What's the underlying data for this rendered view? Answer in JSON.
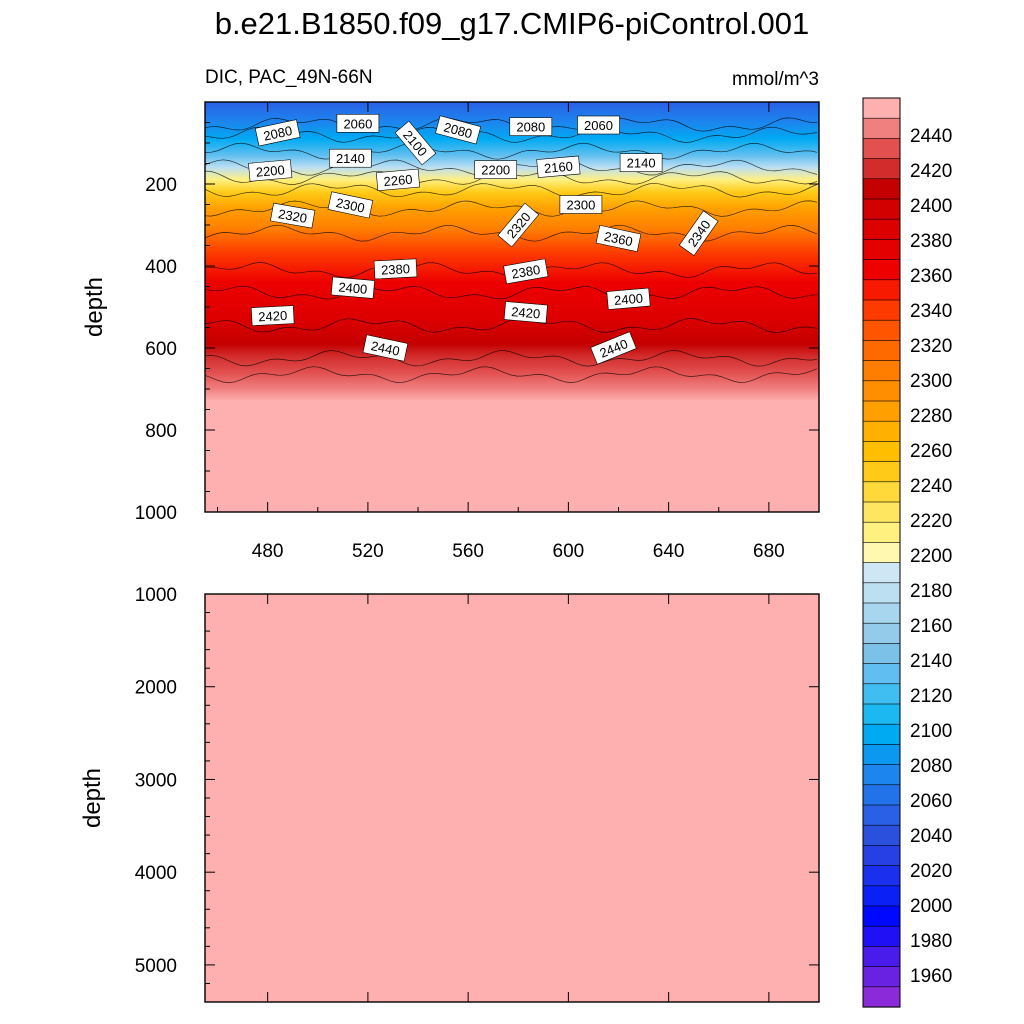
{
  "figure": {
    "title": "b.e21.B1850.f09_g17.CMIP6-piControl.001"
  },
  "chart_data": [
    {
      "type": "heatmap",
      "subtitle_left": "DIC, PAC_49N-66N",
      "subtitle_right": "mmol/m^3",
      "ylabel": "depth",
      "xlabel": "",
      "xlim": [
        455,
        700
      ],
      "ylim": [
        0,
        1000
      ],
      "y_inverted": true,
      "x_ticks": [
        480,
        520,
        560,
        600,
        640,
        680
      ],
      "y_ticks": [
        200,
        400,
        600,
        800,
        1000
      ],
      "contour_levels": [
        2000,
        2020,
        2040,
        2060,
        2080,
        2100,
        2120,
        2140,
        2160,
        2180,
        2200,
        2220,
        2240,
        2260,
        2280,
        2300,
        2320,
        2340,
        2360,
        2380,
        2400,
        2420,
        2440
      ],
      "contour_depths_m": {
        "2080": 55,
        "2100": 80,
        "2140": 120,
        "2180": 160,
        "2200": 185,
        "2240": 215,
        "2300": 260,
        "2340": 320,
        "2380": 410,
        "2400": 465,
        "2420": 545,
        "2440": 625,
        "2460": 665
      },
      "labels": [
        {
          "text": "2080",
          "x": 484,
          "depth": 75,
          "angle": -12
        },
        {
          "text": "2060",
          "x": 516,
          "depth": 52,
          "angle": 0
        },
        {
          "text": "2100",
          "x": 539,
          "depth": 100,
          "angle": 50
        },
        {
          "text": "2080",
          "x": 556,
          "depth": 68,
          "angle": 15
        },
        {
          "text": "2080",
          "x": 585,
          "depth": 60,
          "angle": 0
        },
        {
          "text": "2060",
          "x": 612,
          "depth": 56,
          "angle": 0
        },
        {
          "text": "2200",
          "x": 481,
          "depth": 167,
          "angle": -5
        },
        {
          "text": "2140",
          "x": 513,
          "depth": 137,
          "angle": 0
        },
        {
          "text": "2200",
          "x": 571,
          "depth": 165,
          "angle": 0
        },
        {
          "text": "2160",
          "x": 596,
          "depth": 158,
          "angle": -5
        },
        {
          "text": "2140",
          "x": 629,
          "depth": 148,
          "angle": 0
        },
        {
          "text": "2260",
          "x": 532,
          "depth": 190,
          "angle": -5
        },
        {
          "text": "2320",
          "x": 490,
          "depth": 277,
          "angle": 10
        },
        {
          "text": "2300",
          "x": 513,
          "depth": 251,
          "angle": 12
        },
        {
          "text": "2320",
          "x": 580,
          "depth": 300,
          "angle": -50
        },
        {
          "text": "2300",
          "x": 605,
          "depth": 250,
          "angle": 0
        },
        {
          "text": "2360",
          "x": 620,
          "depth": 333,
          "angle": 12
        },
        {
          "text": "2340",
          "x": 652,
          "depth": 320,
          "angle": -55
        },
        {
          "text": "2380",
          "x": 531,
          "depth": 407,
          "angle": -3
        },
        {
          "text": "2400",
          "x": 514,
          "depth": 453,
          "angle": 5
        },
        {
          "text": "2380",
          "x": 583,
          "depth": 413,
          "angle": -10
        },
        {
          "text": "2400",
          "x": 624,
          "depth": 480,
          "angle": -5
        },
        {
          "text": "2420",
          "x": 482,
          "depth": 521,
          "angle": -3
        },
        {
          "text": "2420",
          "x": 583,
          "depth": 513,
          "angle": 5
        },
        {
          "text": "2440",
          "x": 527,
          "depth": 600,
          "angle": 12
        },
        {
          "text": "2440",
          "x": 618,
          "depth": 600,
          "angle": -22
        }
      ]
    },
    {
      "type": "heatmap",
      "subtitle_left": "",
      "subtitle_right": "",
      "ylabel": "depth",
      "xlabel": "",
      "xlim": [
        455,
        700
      ],
      "ylim": [
        1000,
        5400
      ],
      "y_inverted": true,
      "y_ticks": [
        1000,
        2000,
        3000,
        4000,
        5000
      ],
      "fill_value_min": 2460
    }
  ],
  "colorbar": {
    "orientation": "vertical",
    "boundaries": [
      2440,
      2420,
      2400,
      2380,
      2360,
      2340,
      2320,
      2300,
      2280,
      2260,
      2240,
      2220,
      2200,
      2180,
      2160,
      2140,
      2120,
      2100,
      2080,
      2060,
      2040,
      2020,
      2000,
      1980,
      1960
    ],
    "colors": [
      "#feb0b0",
      "#f08080",
      "#e25050",
      "#d22c2c",
      "#c40000",
      "#d20000",
      "#dc0000",
      "#e40000",
      "#ee0000",
      "#f81a00",
      "#fd3a00",
      "#ff5500",
      "#ff6a00",
      "#ff7e00",
      "#ff8e00",
      "#ffa000",
      "#ffb000",
      "#ffbe00",
      "#ffcb18",
      "#ffd83a",
      "#ffe660",
      "#fff080",
      "#fff8b0",
      "#cfe6f5",
      "#bddff2",
      "#a8d6ef",
      "#95cbea",
      "#7bc1e8",
      "#60bff0",
      "#40bef2",
      "#1cb8f2",
      "#00aaf2",
      "#0b98f0",
      "#1c86ee",
      "#2272ea",
      "#2a60e6",
      "#2c50de",
      "#2640e6",
      "#1a30ee",
      "#0a20f5",
      "#0008ff",
      "#2010f5",
      "#4a1ceb",
      "#6a22e2",
      "#8a2ad8"
    ]
  }
}
